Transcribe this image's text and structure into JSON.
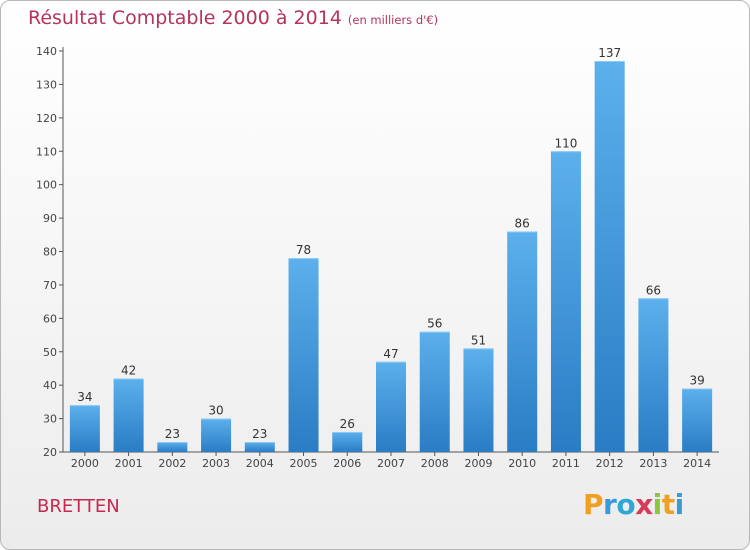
{
  "header": {
    "title": "Résultat Comptable 2000 à 2014",
    "subtitle": "(en milliers d'€)"
  },
  "footer": {
    "city": "BRETTEN",
    "logo": {
      "letters": [
        "P",
        "r",
        "o",
        "x",
        "i",
        "t",
        "i"
      ],
      "colors": [
        "#f0a020",
        "#3a9ad8",
        "#2ea7d6",
        "#d83a5a",
        "#8cc63e",
        "#f0a020",
        "#3a9ad8"
      ]
    }
  },
  "chart_data": {
    "type": "bar",
    "title": "Résultat Comptable 2000 à 2014",
    "subtitle": "(en milliers d'€)",
    "categories": [
      "2000",
      "2001",
      "2002",
      "2003",
      "2004",
      "2005",
      "2006",
      "2007",
      "2008",
      "2009",
      "2010",
      "2011",
      "2012",
      "2013",
      "2014"
    ],
    "values": [
      34,
      42,
      23,
      30,
      23,
      78,
      26,
      47,
      56,
      51,
      86,
      110,
      137,
      66,
      39
    ],
    "ylim": [
      20,
      140
    ],
    "yticks": [
      20,
      30,
      40,
      50,
      60,
      70,
      80,
      90,
      100,
      110,
      120,
      130,
      140
    ],
    "grid": false,
    "bar_color": "#3a8fd6"
  }
}
